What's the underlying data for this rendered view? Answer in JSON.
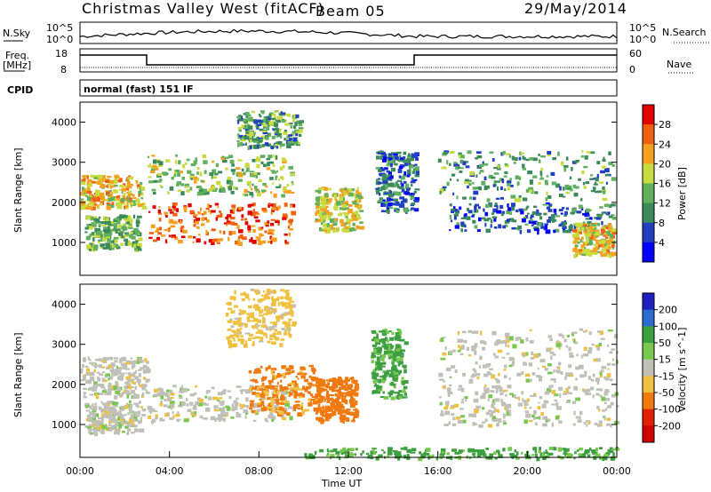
{
  "header": {
    "title": "Christmas Valley West (fitACF)",
    "beam": "Beam 05",
    "date": "29/May/2014"
  },
  "top_panels": {
    "nsky_label": "N.Sky",
    "nsky_ticks": [
      "10^5",
      "10^0"
    ],
    "nsearch_label": "N.Search",
    "nsearch_ticks": [
      "10^5",
      "10^0"
    ],
    "freq_label": "Freq.",
    "freq_unit": "[MHz]",
    "freq_ticks": [
      "18",
      "8"
    ],
    "nave_label": "Nave",
    "nave_ticks": [
      "60",
      "0"
    ],
    "cpid_label": "CPID",
    "cpid_value": "normal (fast) 151 IF"
  },
  "chart_data": [
    {
      "type": "heatmap",
      "name": "power",
      "ylabel": "Slant Range [km]",
      "xlabel": "",
      "xlim": [
        0,
        24
      ],
      "ylim": [
        180,
        4500
      ],
      "yticks": [
        "4000",
        "3000",
        "2000",
        "1000"
      ],
      "yvals": [
        4000,
        3000,
        2000,
        1000
      ],
      "colorbar": {
        "label": "Power [dB]",
        "ticks": [
          "28",
          "24",
          "20",
          "16",
          "12",
          "8",
          "4"
        ],
        "tick_vals": [
          28,
          24,
          20,
          16,
          12,
          8,
          4
        ],
        "range": [
          0,
          32
        ],
        "colors": [
          "#0000ff",
          "#2040c0",
          "#3a8a5a",
          "#60b060",
          "#c8dc40",
          "#f5a020",
          "#f06010",
          "#e00000"
        ]
      },
      "bands": [
        {
          "t0": 0.0,
          "t1": 2.8,
          "r0": 1900,
          "r1": 2700,
          "level": 20
        },
        {
          "t0": 0.2,
          "t1": 2.6,
          "r0": 850,
          "r1": 1700,
          "level": 14
        },
        {
          "t0": 3.0,
          "t1": 9.5,
          "r0": 1000,
          "r1": 2000,
          "level": 26
        },
        {
          "t0": 3.0,
          "t1": 9.5,
          "r0": 2200,
          "r1": 3200,
          "level": 16
        },
        {
          "t0": 7.0,
          "t1": 9.8,
          "r0": 3400,
          "r1": 4300,
          "level": 12
        },
        {
          "t0": 10.5,
          "t1": 12.5,
          "r0": 1300,
          "r1": 2400,
          "level": 18
        },
        {
          "t0": 13.2,
          "t1": 15.0,
          "r0": 1800,
          "r1": 3300,
          "level": 8
        },
        {
          "t0": 16.0,
          "t1": 23.8,
          "r0": 2100,
          "r1": 3300,
          "level": 12
        },
        {
          "t0": 16.5,
          "t1": 23.8,
          "r0": 1300,
          "r1": 2000,
          "level": 8
        },
        {
          "t0": 22.0,
          "t1": 23.8,
          "r0": 700,
          "r1": 1500,
          "level": 20
        }
      ]
    },
    {
      "type": "heatmap",
      "name": "velocity",
      "ylabel": "Slant Range [km]",
      "xlabel": "Time UT",
      "xlim": [
        0,
        24
      ],
      "ylim": [
        180,
        4500
      ],
      "xticks": [
        "00:00",
        "04:00",
        "08:00",
        "12:00",
        "16:00",
        "20:00",
        "00:00"
      ],
      "xvals": [
        0,
        4,
        8,
        12,
        16,
        20,
        24
      ],
      "yticks": [
        "4000",
        "3000",
        "2000",
        "1000"
      ],
      "yvals": [
        4000,
        3000,
        2000,
        1000
      ],
      "colorbar": {
        "label": "Velocity [m s^-1]",
        "ticks": [
          "200",
          "100",
          "50",
          "15",
          "-15",
          "-50",
          "-100",
          "-200"
        ],
        "colors": [
          "#2020c0",
          "#2a6cd0",
          "#3ca040",
          "#78c850",
          "#c0c0b8",
          "#f0c040",
          "#f07a10",
          "#e02000",
          "#d00000"
        ]
      },
      "bands": [
        {
          "t0": 0.0,
          "t1": 3.0,
          "r0": 1700,
          "r1": 2700,
          "level": 0
        },
        {
          "t0": 0.2,
          "t1": 2.8,
          "r0": 800,
          "r1": 1600,
          "level": 0
        },
        {
          "t0": 3.0,
          "t1": 9.5,
          "r0": 1100,
          "r1": 2000,
          "level": 0
        },
        {
          "t0": 7.5,
          "t1": 10.5,
          "r0": 1300,
          "r1": 2500,
          "level": -60
        },
        {
          "t0": 6.5,
          "t1": 9.5,
          "r0": 3000,
          "r1": 4400,
          "level": -30
        },
        {
          "t0": 10.5,
          "t1": 12.3,
          "r0": 1100,
          "r1": 2200,
          "level": -70
        },
        {
          "t0": 16.0,
          "t1": 24.0,
          "r0": 2100,
          "r1": 3400,
          "level": 0
        },
        {
          "t0": 16.0,
          "t1": 24.0,
          "r0": 1000,
          "r1": 2000,
          "level": 0
        },
        {
          "t0": 13.0,
          "t1": 14.5,
          "r0": 1700,
          "r1": 3400,
          "level": 60
        },
        {
          "t0": 10.0,
          "t1": 24.0,
          "r0": 180,
          "r1": 450,
          "level": 60
        }
      ]
    }
  ]
}
